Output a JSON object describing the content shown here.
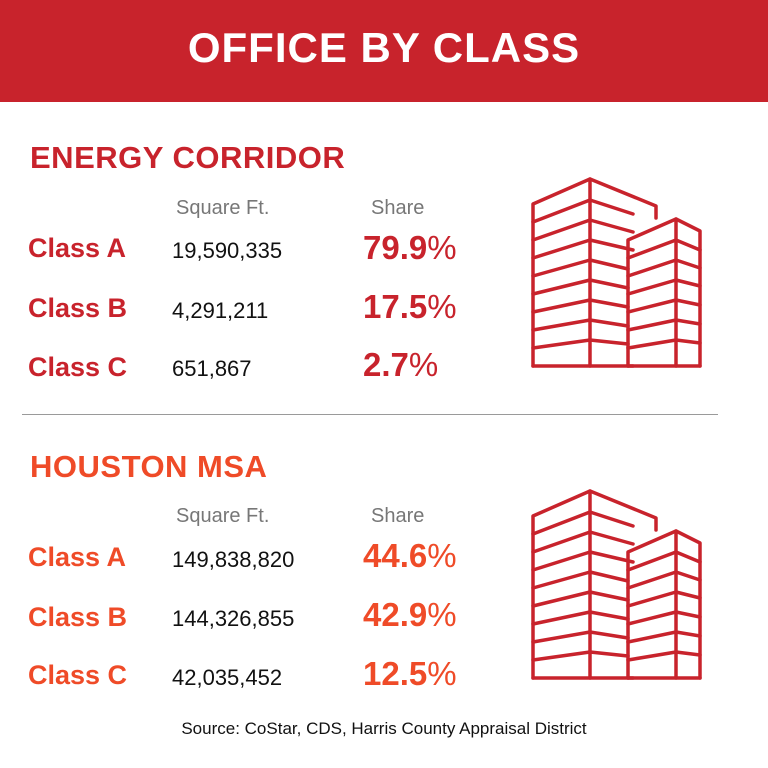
{
  "title": "OFFICE BY CLASS",
  "colors": {
    "banner": "#c8232c",
    "energy_accent": "#c8232c",
    "houston_accent": "#ef4b28",
    "building_stroke": "#c8232c"
  },
  "sections": [
    {
      "title": "ENERGY CORRIDOR",
      "col_sqft": "Square Ft.",
      "col_share": "Share",
      "rows": [
        {
          "label": "Class A",
          "sqft": "19,590,335",
          "share": "79.9",
          "pct": "%"
        },
        {
          "label": "Class B",
          "sqft": "4,291,211",
          "share": "17.5",
          "pct": "%"
        },
        {
          "label": "Class C",
          "sqft": "651,867",
          "share": "2.7",
          "pct": "%"
        }
      ],
      "icon": "office-buildings-icon"
    },
    {
      "title": "HOUSTON MSA",
      "col_sqft": "Square Ft.",
      "col_share": "Share",
      "rows": [
        {
          "label": "Class A",
          "sqft": "149,838,820",
          "share": "44.6",
          "pct": "%"
        },
        {
          "label": "Class B",
          "sqft": "144,326,855",
          "share": "42.9",
          "pct": "%"
        },
        {
          "label": "Class C",
          "sqft": "42,035,452",
          "share": "12.5",
          "pct": "%"
        }
      ],
      "icon": "office-buildings-icon"
    }
  ],
  "source": "Source: CoStar, CDS, Harris County Appraisal District"
}
